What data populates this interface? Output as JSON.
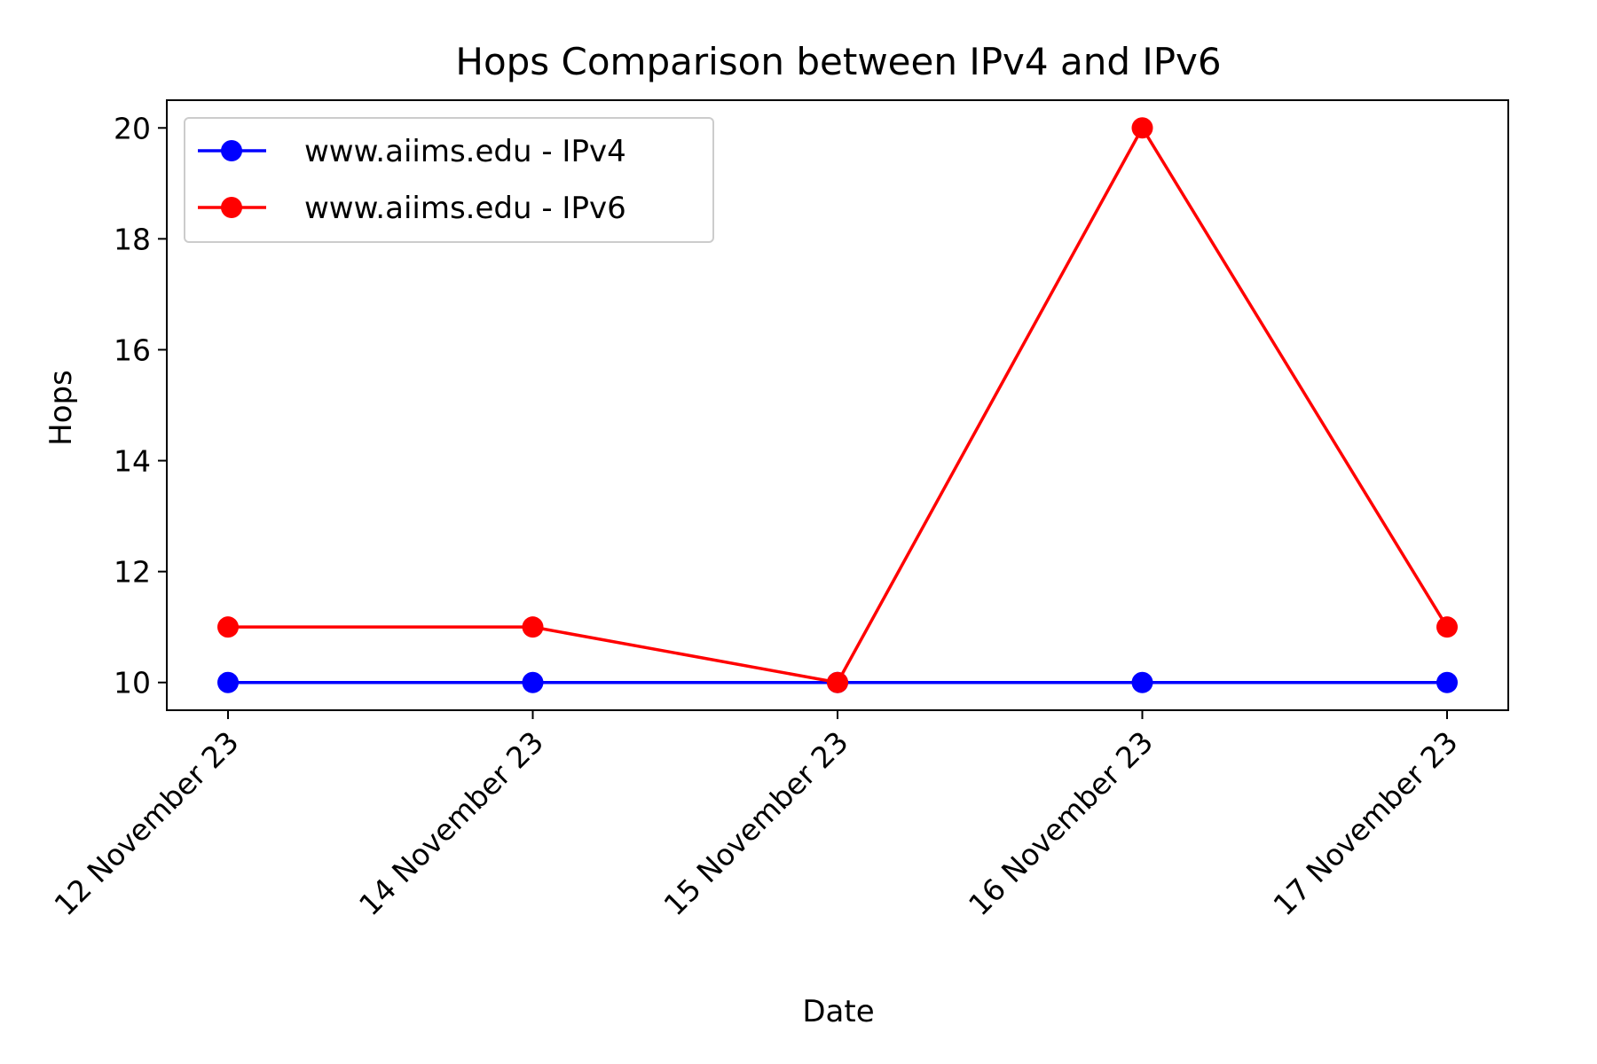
{
  "chart_data": {
    "type": "line",
    "title": "Hops Comparison between IPv4 and IPv6",
    "xlabel": "Date",
    "ylabel": "Hops",
    "categories": [
      "12 November 23",
      "14 November 23",
      "15 November 23",
      "16 November 23",
      "17 November 23"
    ],
    "y_ticks": [
      10,
      12,
      14,
      16,
      18,
      20
    ],
    "ylim": [
      9.5,
      20.5
    ],
    "grid": false,
    "legend_position": "top-left",
    "series": [
      {
        "name": "www.aiims.edu - IPv4",
        "color": "#0000ff",
        "marker": "circle",
        "values": [
          10,
          10,
          10,
          10,
          10
        ]
      },
      {
        "name": "www.aiims.edu - IPv6",
        "color": "#ff0000",
        "marker": "circle",
        "values": [
          11,
          11,
          10,
          20,
          11
        ]
      }
    ]
  }
}
